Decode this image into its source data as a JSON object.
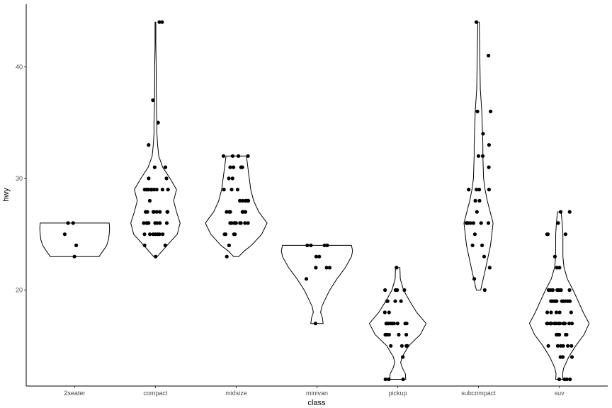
{
  "chart_data": {
    "type": "violin",
    "xlabel": "class",
    "ylabel": "hwy",
    "ylim": [
      11.4,
      45.6
    ],
    "y_ticks": [
      20,
      30,
      40
    ],
    "grid": false,
    "categories": [
      "2seater",
      "compact",
      "midsize",
      "minivan",
      "pickup",
      "subcompact",
      "suv"
    ],
    "groups": [
      {
        "name": "2seater",
        "points": [
          23,
          24,
          25,
          26,
          26
        ],
        "density": [
          [
            23,
            0.67
          ],
          [
            23.5,
            0.78
          ],
          [
            24,
            0.88
          ],
          [
            24.5,
            0.93
          ],
          [
            25,
            0.95
          ],
          [
            25.5,
            0.96
          ],
          [
            26,
            0.95
          ]
        ]
      },
      {
        "name": "compact",
        "points": [
          23,
          24,
          24,
          25,
          25,
          25,
          25,
          25,
          25,
          25,
          26,
          26,
          26,
          26,
          26,
          26,
          26,
          26,
          27,
          27,
          27,
          27,
          27,
          27,
          27,
          27,
          28,
          29,
          29,
          29,
          29,
          29,
          29,
          29,
          29,
          29,
          29,
          29,
          30,
          30,
          31,
          31,
          33,
          35,
          37,
          44,
          44
        ],
        "density": [
          [
            23,
            0.05
          ],
          [
            24,
            0.32
          ],
          [
            25,
            0.6
          ],
          [
            26,
            0.68
          ],
          [
            27,
            0.58
          ],
          [
            28,
            0.5
          ],
          [
            29,
            0.58
          ],
          [
            30,
            0.4
          ],
          [
            31,
            0.2
          ],
          [
            32,
            0.09
          ],
          [
            33,
            0.06
          ],
          [
            34,
            0.04
          ],
          [
            35,
            0.04
          ],
          [
            36,
            0.03
          ],
          [
            38,
            0.02
          ],
          [
            40,
            0.02
          ],
          [
            42,
            0.01
          ],
          [
            44,
            0.01
          ]
        ]
      },
      {
        "name": "midsize",
        "points": [
          23,
          24,
          25,
          25,
          25,
          25,
          26,
          26,
          26,
          26,
          26,
          26,
          26,
          26,
          26,
          26,
          26,
          27,
          27,
          27,
          27,
          27,
          27,
          28,
          28,
          28,
          28,
          28,
          29,
          29,
          29,
          30,
          30,
          31,
          31,
          31,
          31,
          32,
          32,
          32,
          32
        ],
        "density": [
          [
            23,
            0.07
          ],
          [
            23.5,
            0.22
          ],
          [
            24,
            0.42
          ],
          [
            25,
            0.7
          ],
          [
            26,
            0.85
          ],
          [
            27,
            0.62
          ],
          [
            28,
            0.48
          ],
          [
            29,
            0.4
          ],
          [
            30,
            0.36
          ],
          [
            31,
            0.32
          ],
          [
            31.5,
            0.3
          ],
          [
            32,
            0.28
          ]
        ]
      },
      {
        "name": "minivan",
        "points": [
          17,
          21,
          22,
          22,
          22,
          23,
          23,
          24,
          24,
          24,
          24
        ],
        "density": [
          [
            17,
            0.17
          ],
          [
            17.5,
            0.15
          ],
          [
            18,
            0.1
          ],
          [
            18.5,
            0.13
          ],
          [
            19,
            0.2
          ],
          [
            20,
            0.35
          ],
          [
            21,
            0.55
          ],
          [
            22,
            0.78
          ],
          [
            23,
            0.95
          ],
          [
            23.5,
            0.98
          ],
          [
            24,
            0.95
          ]
        ]
      },
      {
        "name": "pickup",
        "points": [
          12,
          12,
          12,
          14,
          15,
          15,
          15,
          15,
          16,
          16,
          16,
          16,
          16,
          16,
          17,
          17,
          17,
          17,
          17,
          17,
          17,
          17,
          17,
          17,
          17,
          17,
          18,
          18,
          19,
          19,
          19,
          19,
          20,
          20,
          20,
          20,
          22
        ],
        "density": [
          [
            12,
            0.22
          ],
          [
            12.5,
            0.21
          ],
          [
            13,
            0.13
          ],
          [
            13.5,
            0.08
          ],
          [
            14,
            0.12
          ],
          [
            15,
            0.3
          ],
          [
            16,
            0.62
          ],
          [
            17,
            0.78
          ],
          [
            18,
            0.52
          ],
          [
            19,
            0.33
          ],
          [
            20,
            0.16
          ],
          [
            21,
            0.07
          ],
          [
            22,
            0.06
          ]
        ]
      },
      {
        "name": "subcompact",
        "points": [
          20,
          21,
          22,
          23,
          24,
          24,
          25,
          26,
          26,
          26,
          26,
          26,
          26,
          26,
          26,
          27,
          28,
          28,
          29,
          29,
          29,
          29,
          31,
          32,
          32,
          33,
          34,
          36,
          36,
          41,
          44
        ],
        "density": [
          [
            20,
            0.06
          ],
          [
            22,
            0.2
          ],
          [
            24,
            0.33
          ],
          [
            26,
            0.4
          ],
          [
            28,
            0.24
          ],
          [
            29,
            0.18
          ],
          [
            30,
            0.14
          ],
          [
            31,
            0.13
          ],
          [
            32,
            0.12
          ],
          [
            33,
            0.12
          ],
          [
            34,
            0.11
          ],
          [
            35,
            0.1
          ],
          [
            36,
            0.09
          ],
          [
            38,
            0.05
          ],
          [
            40,
            0.04
          ],
          [
            42,
            0.03
          ],
          [
            44,
            0.02
          ]
        ]
      },
      {
        "name": "suv",
        "points": [
          12,
          12,
          12,
          12,
          14,
          14,
          14,
          15,
          15,
          15,
          15,
          15,
          15,
          16,
          16,
          16,
          16,
          16,
          17,
          17,
          17,
          17,
          17,
          17,
          17,
          17,
          17,
          17,
          17,
          17,
          17,
          17,
          18,
          18,
          18,
          18,
          18,
          19,
          19,
          19,
          19,
          19,
          19,
          19,
          19,
          19,
          19,
          20,
          20,
          20,
          20,
          20,
          20,
          20,
          22,
          22,
          23,
          25,
          25,
          25,
          26,
          27,
          27
        ],
        "density": [
          [
            12,
            0.1
          ],
          [
            12.5,
            0.09
          ],
          [
            13,
            0.12
          ],
          [
            14,
            0.26
          ],
          [
            15,
            0.45
          ],
          [
            16,
            0.68
          ],
          [
            17,
            0.82
          ],
          [
            18,
            0.66
          ],
          [
            19,
            0.52
          ],
          [
            20,
            0.38
          ],
          [
            21,
            0.22
          ],
          [
            22,
            0.13
          ],
          [
            23,
            0.1
          ],
          [
            24,
            0.1
          ],
          [
            25,
            0.1
          ],
          [
            26,
            0.08
          ],
          [
            27,
            0.05
          ]
        ]
      }
    ]
  }
}
